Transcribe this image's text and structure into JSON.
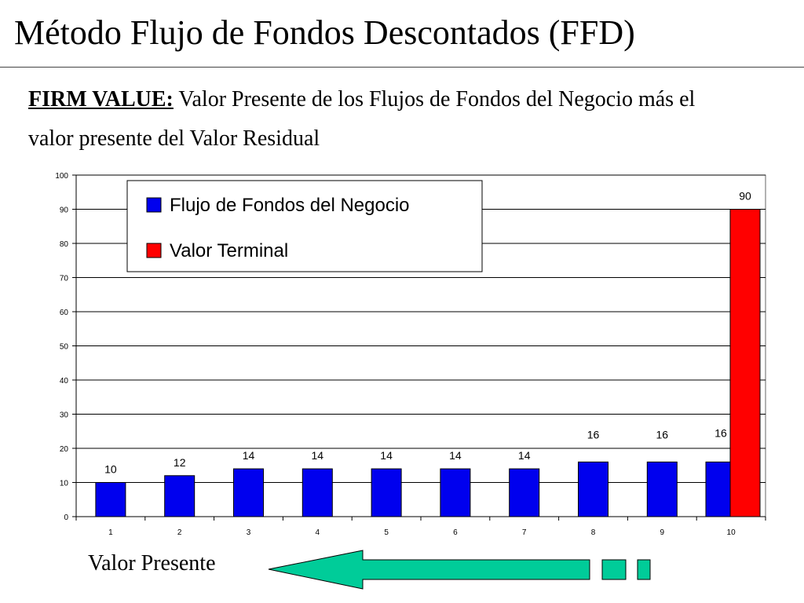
{
  "slide": {
    "title": "Método Flujo de Fondos Descontados (FFD)",
    "intro_bold": "FIRM VALUE:",
    "intro_text": " Valor Presente de los Flujos de Fondos del Negocio más el valor presente del Valor Residual",
    "caption": "Valor Presente"
  },
  "chart_data": {
    "type": "bar",
    "categories": [
      "1",
      "2",
      "3",
      "4",
      "5",
      "6",
      "7",
      "8",
      "9",
      "10"
    ],
    "series": [
      {
        "name": "Flujo de Fondos del Negocio",
        "color": "#0000ee",
        "values": [
          10,
          12,
          14,
          14,
          14,
          14,
          14,
          16,
          16,
          16
        ]
      },
      {
        "name": "Valor Terminal",
        "color": "#ff0000",
        "values": [
          null,
          null,
          null,
          null,
          null,
          null,
          null,
          null,
          null,
          90
        ]
      }
    ],
    "ylim": [
      0,
      100
    ],
    "yticks": [
      0,
      10,
      20,
      30,
      40,
      50,
      60,
      70,
      80,
      90,
      100
    ],
    "grid": true,
    "legend_position": "top-left"
  },
  "colors": {
    "arrow": "#00cc99"
  }
}
